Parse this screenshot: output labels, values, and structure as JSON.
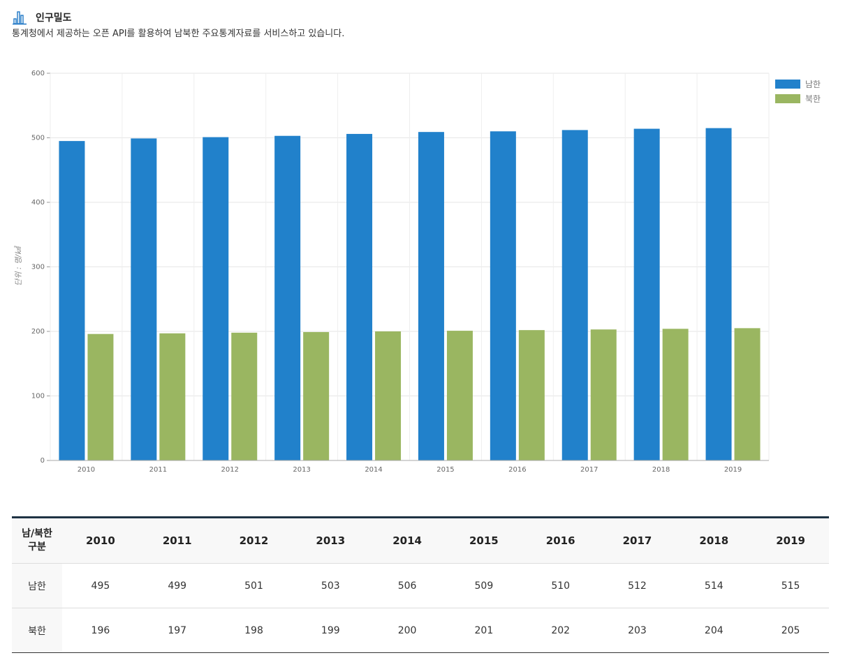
{
  "header": {
    "title": "인구밀도",
    "description": "통계청에서 제공하는 오픈 API를 활용하여 남북한 주요통계자료를 서비스하고 있습니다."
  },
  "colors": {
    "south": "#2181cb",
    "north": "#9ab661",
    "icon": "#1e77c6"
  },
  "icons": {
    "title_icon": "bar-chart-icon"
  },
  "chart_data": {
    "type": "bar",
    "categories": [
      "2010",
      "2011",
      "2012",
      "2013",
      "2014",
      "2015",
      "2016",
      "2017",
      "2018",
      "2019"
    ],
    "series": [
      {
        "name": "남한",
        "values": [
          495,
          499,
          501,
          503,
          506,
          509,
          510,
          512,
          514,
          515
        ],
        "color": "#2181cb"
      },
      {
        "name": "북한",
        "values": [
          196,
          197,
          198,
          199,
          200,
          201,
          202,
          203,
          204,
          205
        ],
        "color": "#9ab661"
      }
    ],
    "ylabel": "단위 : 명/㎢",
    "ylim": [
      0,
      600
    ],
    "yticks": [
      0,
      100,
      200,
      300,
      400,
      500,
      600
    ],
    "grid": true,
    "legend": "top-right"
  },
  "table": {
    "corner_header": [
      "남/북한",
      "구분"
    ],
    "columns": [
      "2010",
      "2011",
      "2012",
      "2013",
      "2014",
      "2015",
      "2016",
      "2017",
      "2018",
      "2019"
    ],
    "rows": [
      {
        "label": "남한",
        "values": [
          "495",
          "499",
          "501",
          "503",
          "506",
          "509",
          "510",
          "512",
          "514",
          "515"
        ]
      },
      {
        "label": "북한",
        "values": [
          "196",
          "197",
          "198",
          "199",
          "200",
          "201",
          "202",
          "203",
          "204",
          "205"
        ]
      }
    ]
  }
}
